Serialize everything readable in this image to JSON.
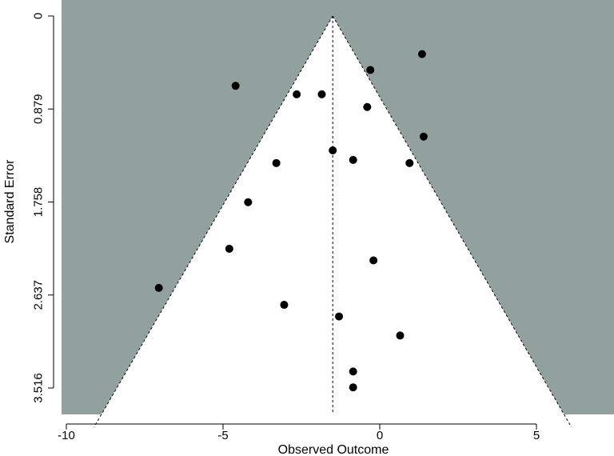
{
  "chart_data": {
    "type": "scatter",
    "subtype": "funnel",
    "xlabel": "Observed Outcome",
    "ylabel": "Standard Error",
    "xlim": [
      -10,
      7
    ],
    "ylim": [
      0,
      3.516
    ],
    "y_reversed": true,
    "x_ticks": [
      -10,
      -5,
      0,
      5
    ],
    "x_tick_labels": [
      "-10",
      "-5",
      "0",
      "5"
    ],
    "y_ticks": [
      0,
      0.879,
      1.758,
      2.637,
      3.516
    ],
    "y_tick_labels": [
      "0",
      "0.879",
      "1.758",
      "2.637",
      "3.516"
    ],
    "center": -1.5,
    "funnel_z": 1.96,
    "colors": {
      "outside_region": "#93a19e",
      "inside_region": "#ffffff",
      "points": "#000000",
      "lines": "#000000"
    },
    "points": [
      {
        "x": 1.35,
        "y": 0.36
      },
      {
        "x": -0.3,
        "y": 0.51
      },
      {
        "x": -4.6,
        "y": 0.66
      },
      {
        "x": -2.65,
        "y": 0.74
      },
      {
        "x": -1.85,
        "y": 0.74
      },
      {
        "x": -0.4,
        "y": 0.86
      },
      {
        "x": 1.4,
        "y": 1.14
      },
      {
        "x": -1.5,
        "y": 1.27
      },
      {
        "x": -0.85,
        "y": 1.36
      },
      {
        "x": -3.3,
        "y": 1.39
      },
      {
        "x": 0.95,
        "y": 1.39
      },
      {
        "x": -4.2,
        "y": 1.76
      },
      {
        "x": -4.8,
        "y": 2.2
      },
      {
        "x": -0.2,
        "y": 2.31
      },
      {
        "x": -7.05,
        "y": 2.57
      },
      {
        "x": -3.05,
        "y": 2.73
      },
      {
        "x": -1.3,
        "y": 2.84
      },
      {
        "x": 0.65,
        "y": 3.02
      },
      {
        "x": -0.85,
        "y": 3.36
      },
      {
        "x": -0.85,
        "y": 3.51
      }
    ]
  }
}
